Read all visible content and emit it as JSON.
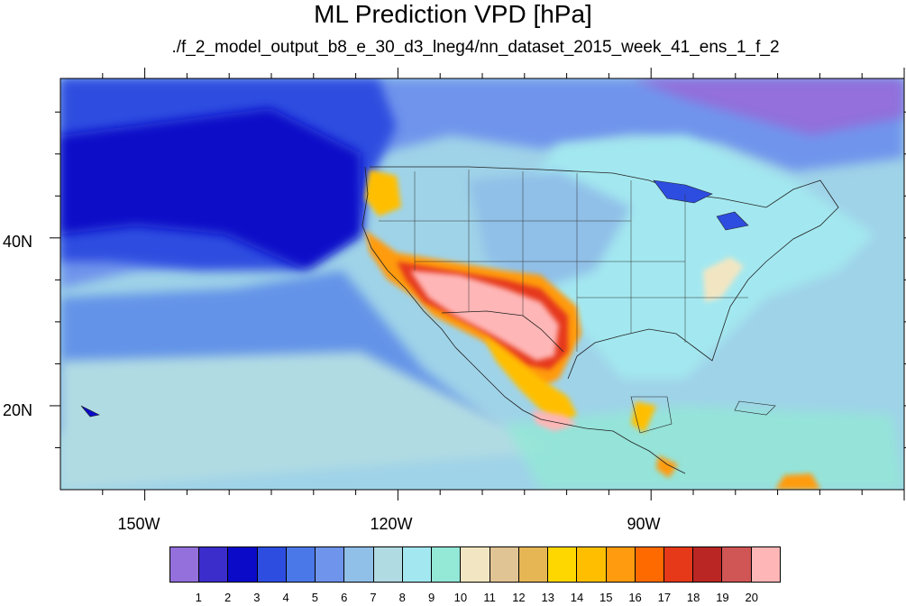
{
  "title": "ML Prediction VPD [hPa]",
  "subtitle": "./f_2_model_output_b8_e_30_d3_lneg4/nn_dataset_2015_week_41_ens_1_f_2",
  "axes": {
    "longitude_labels": [
      "150W",
      "120W",
      "90W"
    ],
    "latitude_labels": [
      "40N",
      "20N"
    ]
  },
  "map_extent": {
    "lon_min": -160,
    "lon_max": -60,
    "lat_min": 10,
    "lat_max": 59
  },
  "colorbar": {
    "labels": [
      "1",
      "2",
      "3",
      "4",
      "5",
      "6",
      "7",
      "8",
      "9",
      "10",
      "11",
      "12",
      "13",
      "14",
      "15",
      "16",
      "17",
      "18",
      "19",
      "20"
    ],
    "colors": [
      "#9370db",
      "#3b2dcb",
      "#0a0ac8",
      "#2d4de0",
      "#4b78e8",
      "#6f94ec",
      "#90bfe8",
      "#b1dbe3",
      "#a3e8f0",
      "#93e8d6",
      "#f2e6c2",
      "#e1c493",
      "#e6b655",
      "#ffd700",
      "#ffbf00",
      "#ff9b0f",
      "#ff6a00",
      "#e5391a",
      "#b92623",
      "#d05555",
      "#ffb6b6"
    ]
  },
  "chart_data": {
    "type": "heatmap",
    "title": "ML Prediction VPD [hPa]",
    "subtitle": "./f_2_model_output_b8_e_30_d3_lneg4/nn_dataset_2015_week_41_ens_1_f_2",
    "variable_units": "hPa",
    "x_ticks": [
      "150W",
      "120W",
      "90W"
    ],
    "y_ticks": [
      "40N",
      "20N"
    ],
    "xlim": [
      -160,
      -60
    ],
    "ylim": [
      10,
      59
    ],
    "color_levels": [
      1,
      2,
      3,
      4,
      5,
      6,
      7,
      8,
      9,
      10,
      11,
      12,
      13,
      14,
      15,
      16,
      17,
      18,
      19,
      20
    ]
  }
}
